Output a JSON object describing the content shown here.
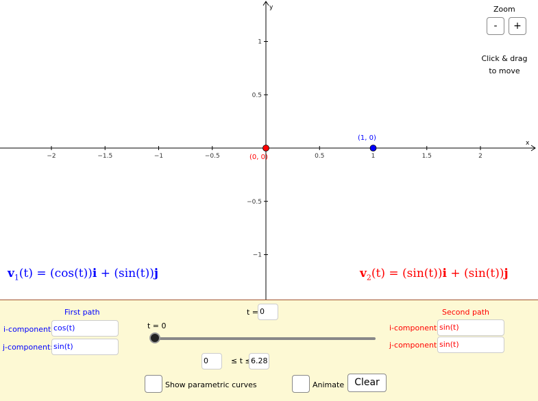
{
  "graph": {
    "x_axis_label": "x",
    "y_axis_label": "y",
    "x_ticks": [
      "−2",
      "−1.5",
      "−1",
      "−0.5",
      "0.5",
      "1",
      "1.5",
      "2"
    ],
    "x_tick_values": [
      -2,
      -1.5,
      -1,
      -0.5,
      0.5,
      1,
      1.5,
      2
    ],
    "y_ticks": [
      "1",
      "0.5",
      "−0.5",
      "−1"
    ],
    "y_tick_values": [
      1,
      0.5,
      -0.5,
      -1
    ],
    "point_blue": {
      "label": "(1, 0)",
      "x": 1,
      "y": 0,
      "color": "#0000ff"
    },
    "point_red": {
      "label": "(0, 0)",
      "x": 0,
      "y": 0,
      "color": "#ff0000"
    }
  },
  "zoom": {
    "title": "Zoom",
    "minus": "-",
    "plus": "+"
  },
  "hint": {
    "line1": "Click & drag",
    "line2": "to move"
  },
  "formulas": {
    "v1": {
      "name": "v",
      "sub": "1",
      "text_a": "(t) = (cos(t))",
      "i": "i",
      "text_b": " + (sin(t))",
      "j": "j",
      "color": "#0000ff"
    },
    "v2": {
      "name": "v",
      "sub": "2",
      "text_a": "(t) = (sin(t))",
      "i": "i",
      "text_b": " + (sin(t))",
      "j": "j",
      "color": "#ff0000"
    }
  },
  "panel": {
    "first_path": {
      "title": "First path",
      "i_label": "i-component:",
      "i_value": "cos(t)",
      "j_label": "j-component:",
      "j_value": "sin(t)",
      "color": "#0000ff"
    },
    "second_path": {
      "title": "Second path",
      "i_label": "i-component:",
      "i_value": "sin(t)",
      "j_label": "j-component:",
      "j_value": "sin(t)",
      "color": "#ff0000"
    },
    "t_label": "t =",
    "t_value": "0",
    "slider_label": "t = 0",
    "slider_value": 0,
    "range_min": "0",
    "range_text": "≤ t ≤",
    "range_max": "6.28",
    "show_curves_label": "Show parametric curves",
    "animate_label": "Animate",
    "clear_label": "Clear"
  },
  "colors": {
    "panel_bg": "#fdf9d4",
    "panel_border": "#a0522d"
  }
}
